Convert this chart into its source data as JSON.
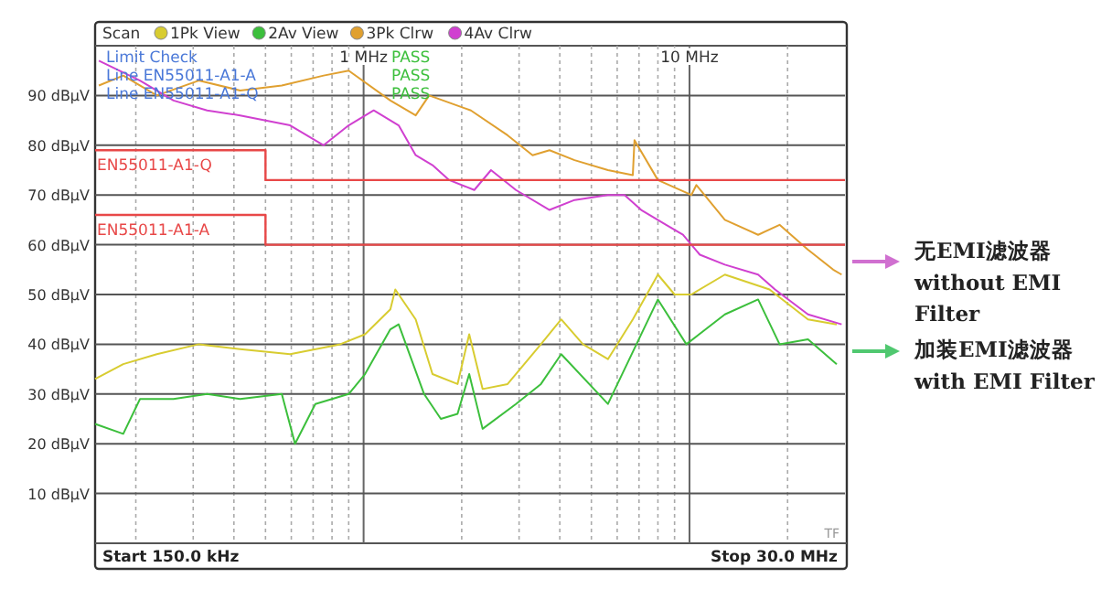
{
  "chart_data": {
    "type": "line",
    "xlabel": null,
    "log": "x",
    "grid": true,
    "legend": "top left",
    "xlim": [
      0.15,
      30
    ],
    "ylim": [
      0,
      100
    ],
    "xticks": [
      {
        "value": 0.2,
        "label": null
      },
      {
        "value": 0.3,
        "label": null
      },
      {
        "value": 0.4,
        "label": null
      },
      {
        "value": 0.5,
        "label": null
      },
      {
        "value": 0.6,
        "label": null
      },
      {
        "value": 0.7,
        "label": null
      },
      {
        "value": 0.8,
        "label": null
      },
      {
        "value": 0.9,
        "label": null
      },
      {
        "value": 1,
        "label": "1 MHz"
      },
      {
        "value": 2,
        "label": null
      },
      {
        "value": 3,
        "label": null
      },
      {
        "value": 4,
        "label": null
      },
      {
        "value": 5,
        "label": null
      },
      {
        "value": 6,
        "label": null
      },
      {
        "value": 7,
        "label": null
      },
      {
        "value": 8,
        "label": null
      },
      {
        "value": 9,
        "label": null
      },
      {
        "value": 10,
        "label": "10 MHz"
      },
      {
        "value": 20,
        "label": null
      }
    ],
    "yticks": [
      {
        "value": 10,
        "label": "10 dBµV"
      },
      {
        "value": 20,
        "label": "20 dBµV"
      },
      {
        "value": 30,
        "label": "30 dBµV"
      },
      {
        "value": 40,
        "label": "40 dBµV"
      },
      {
        "value": 50,
        "label": "50 dBµV"
      },
      {
        "value": 60,
        "label": "60 dBµV"
      },
      {
        "value": 70,
        "label": "70 dBµV"
      },
      {
        "value": 80,
        "label": "80 dBµV"
      },
      {
        "value": 90,
        "label": "90 dBµV"
      }
    ],
    "series": [
      {
        "name": "1Pk View",
        "color": "#d8cc30",
        "x": [
          0.15,
          0.183,
          0.232,
          0.312,
          0.418,
          0.595,
          0.848,
          1.01,
          1.208,
          1.251,
          1.445,
          1.627,
          1.942,
          2.109,
          2.318,
          2.766,
          3.5,
          4.04,
          4.71,
          5.62,
          6.7,
          8,
          9,
          10.13,
          12.84,
          17.6,
          23.1,
          28.3
        ],
        "values": [
          33,
          36,
          38,
          40,
          39,
          38,
          40,
          42,
          47,
          51,
          45,
          34,
          32,
          42,
          31,
          32,
          40,
          45,
          40,
          37,
          45,
          54,
          50,
          50,
          54,
          51,
          45,
          44
        ]
      },
      {
        "name": "2Av View",
        "color": "#3cbf3c",
        "x": [
          0.15,
          0.183,
          0.206,
          0.261,
          0.331,
          0.418,
          0.561,
          0.616,
          0.711,
          0.9,
          1.01,
          1.208,
          1.281,
          1.533,
          1.726,
          1.942,
          2.109,
          2.318,
          2.934,
          3.5,
          4.04,
          5.62,
          8,
          9.78,
          12.84,
          16.24,
          18.9,
          23.1,
          28.3
        ],
        "values": [
          24,
          22,
          29,
          29,
          30,
          29,
          30,
          20,
          28,
          30,
          34,
          43,
          44,
          30,
          25,
          26,
          34,
          23,
          28,
          32,
          38,
          28,
          49,
          40,
          46,
          49,
          40,
          41,
          36
        ]
      },
      {
        "name": "3Pk Clrw",
        "color": "#e0a030",
        "x": [
          0.154,
          0.183,
          0.232,
          0.312,
          0.418,
          0.561,
          0.754,
          0.9,
          1.208,
          1.445,
          1.589,
          2.134,
          2.766,
          3.3,
          3.72,
          4.44,
          5.62,
          6.7,
          6.78,
          8,
          10.13,
          10.5,
          12.84,
          16.24,
          18.9,
          23.1,
          27.6,
          29.3
        ],
        "values": [
          92,
          94,
          90,
          93,
          91,
          92,
          94,
          95,
          89,
          86,
          90,
          87,
          82,
          78,
          79,
          77,
          75,
          74,
          81,
          73,
          70,
          72,
          65,
          62,
          64,
          59,
          55,
          54
        ]
      },
      {
        "name": "4Av Clrw",
        "color": "#d040d0",
        "x": [
          0.154,
          0.206,
          0.261,
          0.331,
          0.418,
          0.595,
          0.754,
          0.9,
          1.074,
          1.281,
          1.445,
          1.627,
          1.831,
          2.186,
          2.46,
          2.934,
          3.72,
          4.44,
          5.62,
          6.32,
          7.11,
          8.48,
          9.55,
          10.76,
          12.84,
          16.24,
          18.3,
          23.1,
          29.3
        ],
        "values": [
          97,
          93,
          89,
          87,
          86,
          84,
          80,
          84,
          87,
          84,
          78,
          76,
          73,
          71,
          75,
          71,
          67,
          69,
          70,
          70,
          67,
          64,
          62,
          58,
          56,
          54,
          51,
          46,
          44
        ]
      },
      {
        "name": "EN55011-A1-Q",
        "type": "step",
        "color": "#e84848",
        "x": [
          0.15,
          0.5,
          30
        ],
        "values": [
          79,
          73,
          73
        ]
      },
      {
        "name": "EN55011-A1-A",
        "type": "step",
        "color": "#e84848",
        "x": [
          0.15,
          0.5,
          30
        ],
        "values": [
          66,
          60,
          60
        ]
      }
    ],
    "annotations": [
      "Scan",
      "Limit Check",
      "Line EN55011-A1-A",
      "Line EN55011-A1-Q",
      "PASS",
      "PASS",
      "PASS",
      "Start 150.0 kHz",
      "Stop 30.0 MHz",
      "TF",
      "无EMI滤波器\nwithout EMI\nFilter",
      "加装EMI滤波器\nwith EMI Filter"
    ]
  }
}
